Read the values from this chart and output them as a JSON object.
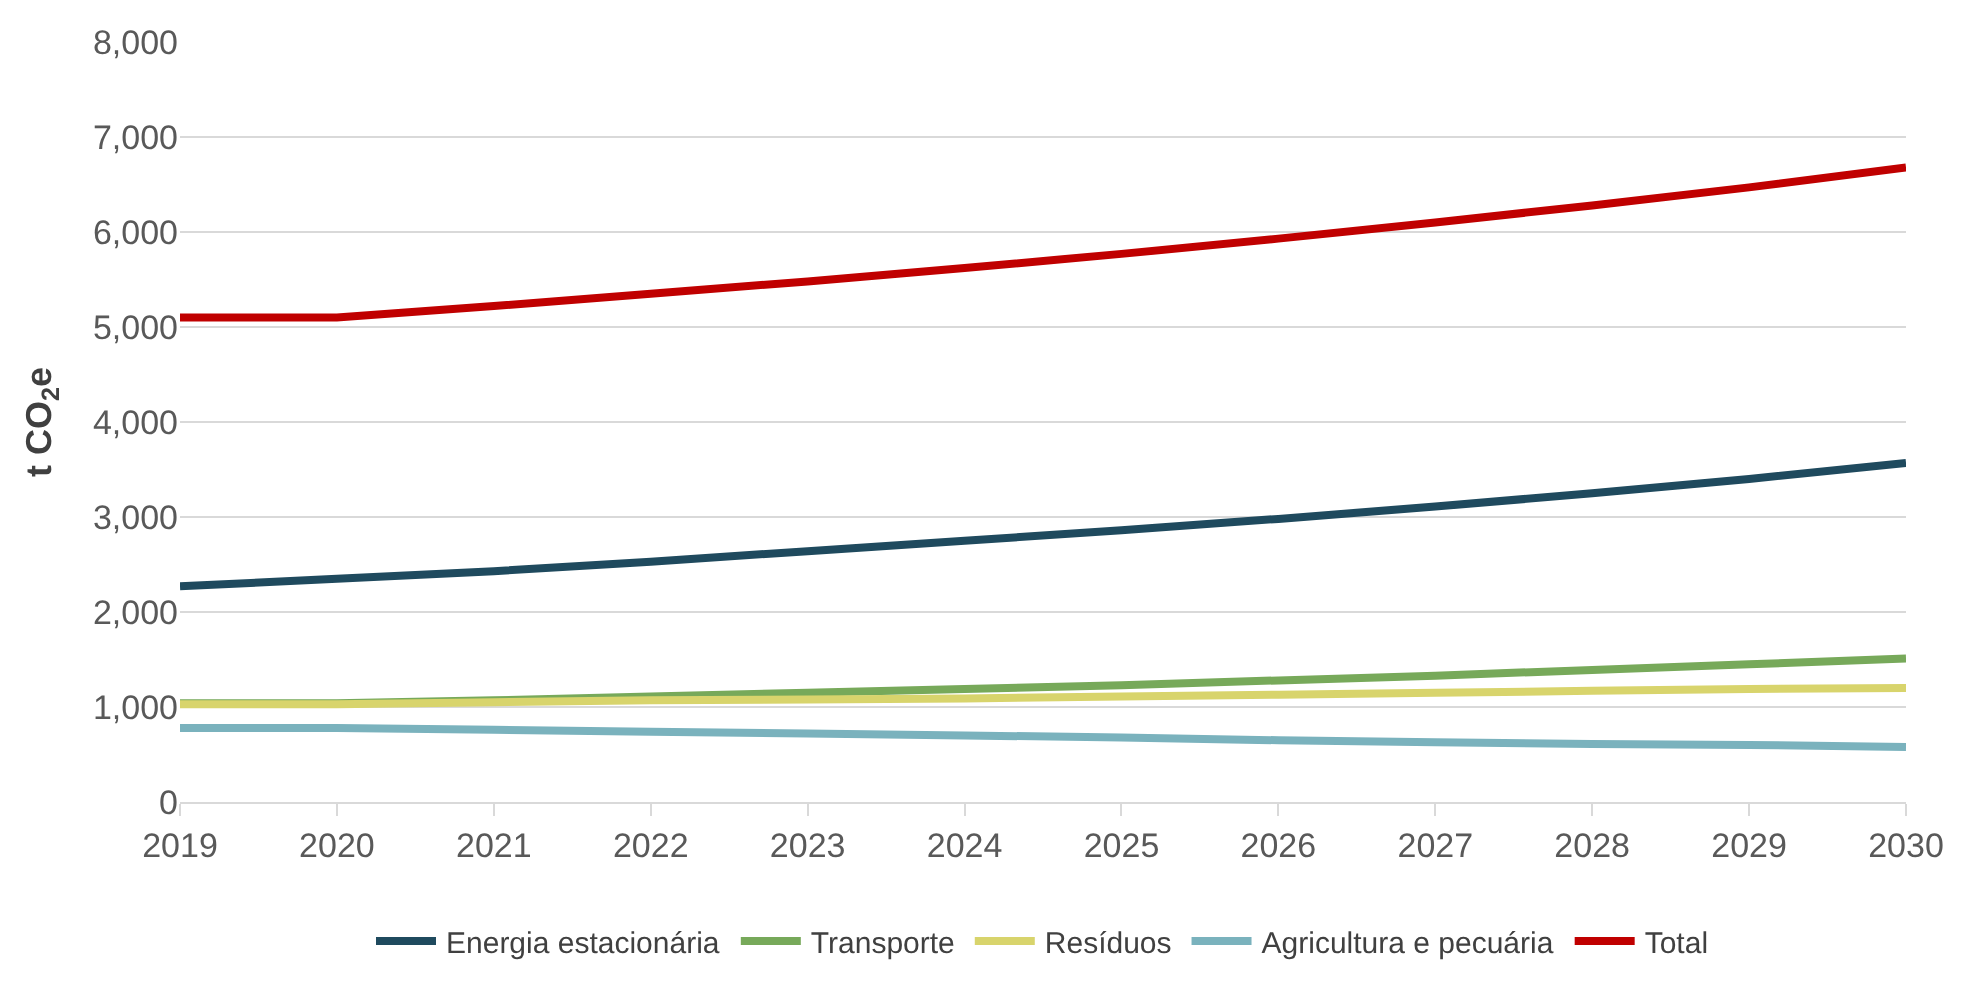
{
  "chart_data": {
    "type": "line",
    "ylabel": "t CO$_{2}$e",
    "x": [
      2019,
      2020,
      2021,
      2022,
      2023,
      2024,
      2025,
      2026,
      2027,
      2028,
      2029,
      2030
    ],
    "xlim": [
      2019,
      2030
    ],
    "xticks": [
      2019,
      2020,
      2021,
      2022,
      2023,
      2024,
      2025,
      2026,
      2027,
      2028,
      2029,
      2030
    ],
    "ylim": [
      0,
      8000
    ],
    "yticks": [
      {
        "value": 0,
        "label": "0"
      },
      {
        "value": 1000,
        "label": "1,000"
      },
      {
        "value": 2000,
        "label": "2,000"
      },
      {
        "value": 3000,
        "label": "3,000"
      },
      {
        "value": 4000,
        "label": "4,000"
      },
      {
        "value": 5000,
        "label": "5,000"
      },
      {
        "value": 6000,
        "label": "6,000"
      },
      {
        "value": 7000,
        "label": "7,000"
      },
      {
        "value": 8000,
        "label": "8,000"
      }
    ],
    "grid": "y",
    "legend": "bottom",
    "marker": "none",
    "line_style": "solid",
    "series": [
      {
        "name": "Energia estacionária",
        "color": "#1f4a5e",
        "values": [
          2270,
          2350,
          2430,
          2530,
          2640,
          2750,
          2860,
          2980,
          3110,
          3250,
          3400,
          3570
        ]
      },
      {
        "name": "Transporte",
        "color": "#77a95a",
        "values": [
          1040,
          1040,
          1070,
          1110,
          1150,
          1190,
          1230,
          1280,
          1330,
          1390,
          1450,
          1510
        ]
      },
      {
        "name": "Resíduos",
        "color": "#d8d46c",
        "values": [
          1030,
          1030,
          1050,
          1070,
          1080,
          1090,
          1110,
          1130,
          1150,
          1170,
          1190,
          1200
        ]
      },
      {
        "name": "Agricultura e pecuária",
        "color": "#7ab2bd",
        "values": [
          780,
          780,
          760,
          740,
          720,
          700,
          680,
          650,
          630,
          610,
          600,
          580
        ]
      },
      {
        "name": "Total",
        "color": "#c00000",
        "values": [
          5100,
          5100,
          5220,
          5350,
          5480,
          5620,
          5770,
          5930,
          6100,
          6280,
          6470,
          6680
        ]
      }
    ]
  }
}
